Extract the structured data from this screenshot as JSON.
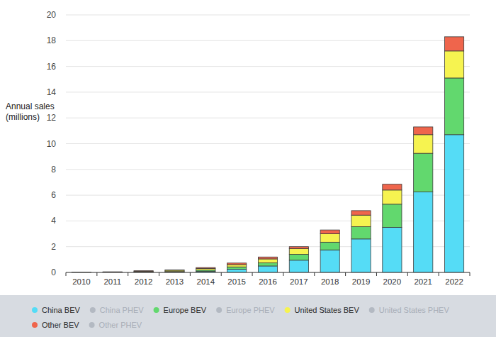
{
  "chart_data": {
    "type": "bar",
    "stacked": true,
    "grid": true,
    "legend": "bottom",
    "y_label": "Annual sales (millions)",
    "categories": [
      "2010",
      "2011",
      "2012",
      "2013",
      "2014",
      "2015",
      "2016",
      "2017",
      "2018",
      "2019",
      "2020",
      "2021",
      "2022"
    ],
    "ylim": [
      0,
      20
    ],
    "yticks": [
      0,
      2,
      4,
      6,
      8,
      10,
      12,
      14,
      16,
      18,
      20
    ],
    "series": [
      {
        "name": "China BEV",
        "color": "#55dcf6",
        "values": [
          0.002,
          0.01,
          0.02,
          0.02,
          0.08,
          0.25,
          0.5,
          0.95,
          1.75,
          2.6,
          3.5,
          6.25,
          10.7
        ]
      },
      {
        "name": "China PHEV",
        "color": "#b3b9c2",
        "values": [
          null,
          null,
          null,
          null,
          null,
          null,
          null,
          null,
          null,
          null,
          null,
          null,
          null
        ]
      },
      {
        "name": "Europe BEV",
        "color": "#62d86e",
        "values": [
          0.005,
          0.01,
          0.03,
          0.05,
          0.1,
          0.18,
          0.25,
          0.45,
          0.6,
          0.95,
          1.8,
          3.0,
          4.4
        ]
      },
      {
        "name": "Europe PHEV",
        "color": "#b3b9c2",
        "values": [
          null,
          null,
          null,
          null,
          null,
          null,
          null,
          null,
          null,
          null,
          null,
          null,
          null
        ]
      },
      {
        "name": "United States BEV",
        "color": "#f6f350",
        "values": [
          0.005,
          0.01,
          0.05,
          0.1,
          0.12,
          0.18,
          0.3,
          0.45,
          0.65,
          0.9,
          1.1,
          1.45,
          2.1
        ]
      },
      {
        "name": "United States PHEV",
        "color": "#b3b9c2",
        "values": [
          null,
          null,
          null,
          null,
          null,
          null,
          null,
          null,
          null,
          null,
          null,
          null,
          null
        ]
      },
      {
        "name": "Other BEV",
        "color": "#ef654c",
        "values": [
          0.002,
          0.02,
          0.03,
          0.03,
          0.08,
          0.12,
          0.15,
          0.15,
          0.3,
          0.35,
          0.45,
          0.6,
          1.1
        ]
      },
      {
        "name": "Other PHEV",
        "color": "#b3b9c2",
        "values": [
          null,
          null,
          null,
          null,
          null,
          null,
          null,
          null,
          null,
          null,
          null,
          null,
          null
        ]
      }
    ]
  }
}
